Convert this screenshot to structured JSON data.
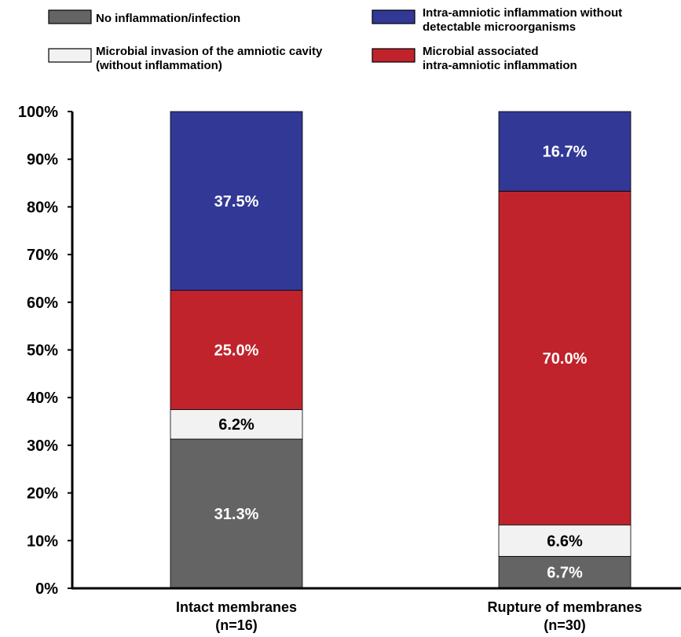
{
  "chart_data": {
    "type": "bar",
    "stacked": true,
    "categories": [
      [
        "Intact membranes",
        "(n=16)"
      ],
      [
        "Rupture of membranes",
        "(n=30)"
      ]
    ],
    "series": [
      {
        "key": "none",
        "name": "No inflammation/infection",
        "color": "#646464",
        "label_color": "#ffffff",
        "values": [
          31.3,
          6.7
        ],
        "labels": [
          "31.3%",
          "6.7%"
        ]
      },
      {
        "key": "mic",
        "name": "Microbial invasion of the amniotic cavity (without inflammation)",
        "color": "#f2f2f2",
        "label_color": "#000000",
        "values": [
          6.2,
          6.6
        ],
        "labels": [
          "6.2%",
          "6.6%"
        ]
      },
      {
        "key": "maiai",
        "name": "Microbial associated intra-amniotic inflammation",
        "color": "#c0232b",
        "label_color": "#ffffff",
        "values": [
          25.0,
          70.0
        ],
        "labels": [
          "25.0%",
          "70.0%"
        ]
      },
      {
        "key": "iai",
        "name": "Intra-amniotic inflammation without detectable microorganisms",
        "color": "#323896",
        "label_color": "#ffffff",
        "values": [
          37.5,
          16.7
        ],
        "labels": [
          "37.5%",
          "16.7%"
        ]
      }
    ],
    "legend": {
      "position": "top",
      "entries": [
        {
          "series": "none",
          "lines": [
            "No inflammation/infection"
          ]
        },
        {
          "series": "iai",
          "lines": [
            "Intra-amniotic inflammation without",
            "detectable microorganisms"
          ]
        },
        {
          "series": "mic",
          "lines": [
            "Microbial invasion of the amniotic cavity",
            "(without inflammation)"
          ]
        },
        {
          "series": "maiai",
          "lines": [
            "Microbial associated",
            "intra-amniotic inflammation"
          ]
        }
      ]
    },
    "y_ticks": [
      "0%",
      "10%",
      "20%",
      "30%",
      "40%",
      "50%",
      "60%",
      "70%",
      "80%",
      "90%",
      "100%"
    ],
    "ylim": [
      0,
      100
    ],
    "grid": false,
    "xlabel": "",
    "ylabel": "",
    "title": ""
  }
}
